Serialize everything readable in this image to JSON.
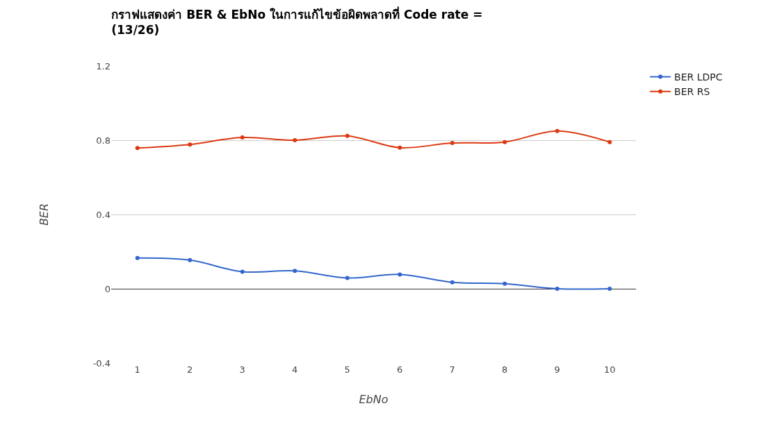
{
  "chart_data": {
    "type": "line",
    "title": "กราฟแสดงค่า BER & EbNo ในการแก้ไขข้อผิดพลาดที่ Code rate =\n(13/26)",
    "xlabel": "EbNo",
    "ylabel": "BER",
    "categories": [
      "1",
      "2",
      "3",
      "4",
      "5",
      "6",
      "7",
      "8",
      "9",
      "10"
    ],
    "series": [
      {
        "name": "BER LDPC",
        "color": "#3366cc",
        "values": [
          0.165,
          0.154,
          0.092,
          0.096,
          0.058,
          0.077,
          0.035,
          0.027,
          0.0,
          0.0
        ]
      },
      {
        "name": "BER RS",
        "color": "#dc3912",
        "values": [
          0.758,
          0.777,
          0.815,
          0.8,
          0.823,
          0.76,
          0.785,
          0.79,
          0.85,
          0.79
        ]
      }
    ],
    "ylim": [
      -0.4,
      1.2
    ],
    "yticks": [
      -0.4,
      0,
      0.4,
      0.8,
      1.2
    ],
    "grid": "y",
    "legend": "top right",
    "marker": "circle",
    "line_style": "solid"
  }
}
